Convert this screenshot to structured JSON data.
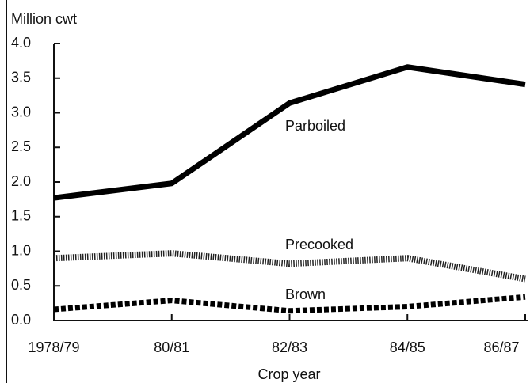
{
  "chart_data": {
    "type": "line",
    "title": "Million cwt",
    "x_label": "Crop year",
    "categories": [
      "1978/79",
      "80/81",
      "82/83",
      "84/85",
      "86/87"
    ],
    "series": [
      {
        "name": "Parboiled",
        "color": "#000000",
        "line_style": "solid",
        "values": [
          1.77,
          1.98,
          3.14,
          3.66,
          3.41
        ]
      },
      {
        "name": "Precooked",
        "color": "#222222",
        "line_style": "dotted",
        "values": [
          0.9,
          0.97,
          0.82,
          0.9,
          0.6
        ]
      },
      {
        "name": "Brown",
        "color": "#000000",
        "line_style": "dashed",
        "values": [
          0.16,
          0.29,
          0.14,
          0.2,
          0.34
        ]
      }
    ],
    "ylim": [
      0,
      4
    ],
    "yticks": [
      {
        "value": 0,
        "label": "0.0"
      },
      0.5,
      {
        "value": 1,
        "label": "1.0"
      },
      1.5,
      {
        "value": 2,
        "label": "2.0"
      },
      2.5,
      {
        "value": 3,
        "label": "3.0"
      },
      3.5,
      {
        "value": 4,
        "label": "4.0"
      }
    ],
    "grid": false
  }
}
